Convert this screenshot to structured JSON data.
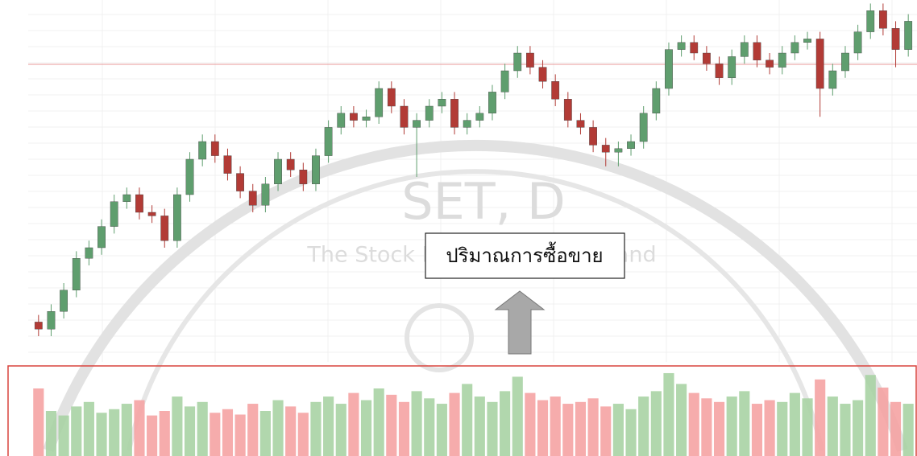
{
  "chart_data": {
    "type": "candlestick",
    "watermark_title": "SET, D",
    "watermark_subtitle": "The Stock Exchange of Thailand",
    "annotation": "ปริมาณการซื้อขาย",
    "ylim": [
      0,
      100
    ],
    "up_color": "#5f9e6e",
    "down_color": "#b23b36",
    "open": [
      9,
      7,
      12,
      18,
      27,
      30,
      36,
      43,
      45,
      40,
      39,
      32,
      45,
      55,
      60,
      56,
      51,
      46,
      42,
      48,
      55,
      52,
      48,
      56,
      64,
      68,
      66,
      67,
      75,
      70,
      64,
      66,
      70,
      72,
      64,
      66,
      68,
      74,
      80,
      85,
      81,
      77,
      72,
      66,
      64,
      59,
      57,
      58,
      60,
      68,
      75,
      86,
      88,
      85,
      82,
      78,
      84,
      88,
      83,
      81,
      85,
      88,
      89,
      75,
      80,
      85,
      91,
      97,
      92,
      86
    ],
    "high": [
      11,
      14,
      20,
      29,
      32,
      38,
      45,
      47,
      47,
      42,
      41,
      47,
      57,
      62,
      62,
      58,
      53,
      48,
      50,
      57,
      57,
      54,
      58,
      66,
      70,
      70,
      69,
      77,
      77,
      72,
      68,
      72,
      74,
      74,
      68,
      70,
      76,
      82,
      87,
      87,
      83,
      79,
      74,
      68,
      66,
      61,
      60,
      62,
      70,
      77,
      88,
      90,
      90,
      87,
      84,
      86,
      90,
      90,
      85,
      87,
      90,
      91,
      91,
      82,
      87,
      93,
      99,
      99,
      94,
      96
    ],
    "low": [
      5,
      5,
      10,
      16,
      25,
      28,
      34,
      41,
      38,
      37,
      30,
      30,
      43,
      53,
      54,
      49,
      44,
      40,
      40,
      46,
      50,
      46,
      46,
      54,
      62,
      64,
      64,
      65,
      68,
      62,
      50,
      64,
      68,
      62,
      62,
      64,
      66,
      72,
      78,
      79,
      75,
      70,
      64,
      62,
      57,
      53,
      53,
      56,
      58,
      66,
      73,
      84,
      83,
      80,
      76,
      76,
      82,
      81,
      79,
      79,
      83,
      86,
      67,
      73,
      78,
      83,
      89,
      90,
      81,
      84
    ],
    "close": [
      7,
      12,
      18,
      27,
      30,
      36,
      43,
      45,
      40,
      39,
      32,
      45,
      55,
      60,
      56,
      51,
      46,
      42,
      48,
      55,
      52,
      48,
      56,
      64,
      68,
      66,
      67,
      75,
      70,
      64,
      66,
      70,
      72,
      64,
      66,
      68,
      74,
      80,
      85,
      81,
      77,
      72,
      66,
      64,
      59,
      57,
      58,
      60,
      68,
      75,
      86,
      88,
      85,
      82,
      78,
      84,
      88,
      83,
      81,
      85,
      88,
      89,
      75,
      80,
      85,
      91,
      97,
      92,
      86,
      94
    ],
    "volume": {
      "ylim": [
        0,
        100
      ],
      "up_color": "#a9d3a4",
      "down_color": "#f5a3a3",
      "values": [
        75,
        50,
        45,
        55,
        60,
        48,
        52,
        58,
        62,
        45,
        50,
        66,
        55,
        60,
        48,
        52,
        46,
        58,
        50,
        62,
        55,
        48,
        60,
        66,
        58,
        70,
        62,
        75,
        68,
        60,
        72,
        64,
        58,
        70,
        80,
        66,
        60,
        72,
        88,
        70,
        62,
        66,
        58,
        60,
        64,
        55,
        58,
        52,
        66,
        72,
        92,
        80,
        70,
        64,
        60,
        66,
        72,
        58,
        62,
        60,
        70,
        64,
        85,
        66,
        58,
        62,
        90,
        76,
        60,
        58
      ]
    }
  }
}
